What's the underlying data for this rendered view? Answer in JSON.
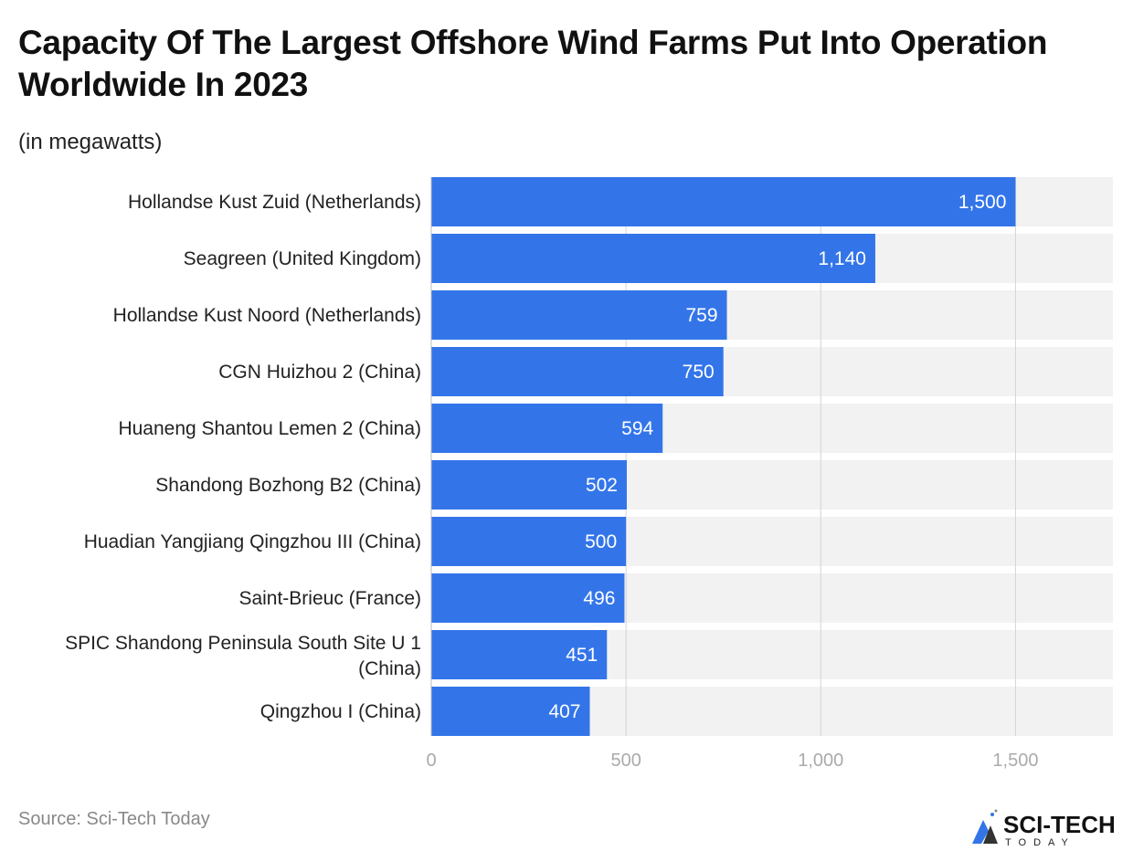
{
  "title": "Capacity Of The Largest Offshore Wind Farms Put Into Operation Worldwide In 2023",
  "subtitle": "(in megawatts)",
  "source": "Source: Sci-Tech Today",
  "logo": {
    "text": "SCI-TECH",
    "subtext": "TODAY"
  },
  "colors": {
    "bar": "#3375e9",
    "track": "#f2f2f2",
    "grid": "#d4d4d4"
  },
  "chart_data": {
    "type": "bar",
    "orientation": "horizontal",
    "categories": [
      "Hollandse Kust Zuid (Netherlands)",
      "Seagreen (United Kingdom)",
      "Hollandse Kust Noord (Netherlands)",
      "CGN Huizhou 2 (China)",
      "Huaneng Shantou Lemen 2 (China)",
      "Shandong Bozhong B2 (China)",
      "Huadian Yangjiang Qingzhou III (China)",
      "Saint-Brieuc (France)",
      "SPIC Shandong Peninsula South Site U 1 (China)",
      "Qingzhou I (China)"
    ],
    "values": [
      1500,
      1140,
      759,
      750,
      594,
      502,
      500,
      496,
      451,
      407
    ],
    "value_labels": [
      "1,500",
      "1,140",
      "759",
      "750",
      "594",
      "502",
      "500",
      "496",
      "451",
      "407"
    ],
    "xlim": [
      0,
      1750
    ],
    "xticks": [
      0,
      500,
      1000,
      1500
    ],
    "xtick_labels": [
      "0",
      "500",
      "1,000",
      "1,500"
    ],
    "grid": true
  }
}
